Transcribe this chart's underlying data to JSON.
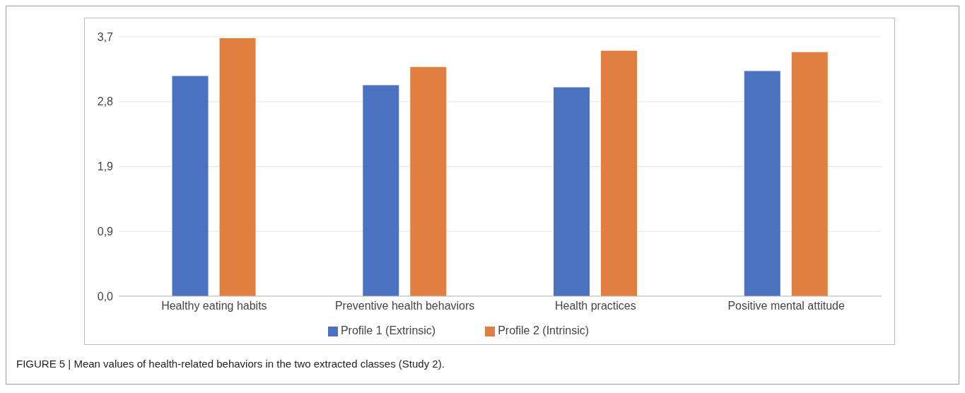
{
  "chart_data": {
    "type": "bar",
    "categories": [
      "Healthy eating habits",
      "Preventive health behaviors",
      "Health practices",
      "Positive mental attitude"
    ],
    "series": [
      {
        "name": "Profile 1 (Extrinsic)",
        "color": "#4a72c0",
        "values": [
          3.14,
          3.01,
          2.98,
          3.21
        ]
      },
      {
        "name": "Profile 2 (Intrinsic)",
        "color": "#e07f3f",
        "values": [
          3.68,
          3.27,
          3.5,
          3.48
        ]
      }
    ],
    "ylim": [
      0,
      3.7
    ],
    "yticks": [
      {
        "value": 0,
        "label": "0,0"
      },
      {
        "value": 0.925,
        "label": "0,9"
      },
      {
        "value": 1.85,
        "label": "1,9"
      },
      {
        "value": 2.775,
        "label": "2,8"
      },
      {
        "value": 3.7,
        "label": "3,7"
      }
    ],
    "grid": "y",
    "legend": "bottom",
    "annotations": [
      "FIGURE 5 | Mean values of health-related behaviors in the two extracted classes (Study 2)."
    ]
  }
}
